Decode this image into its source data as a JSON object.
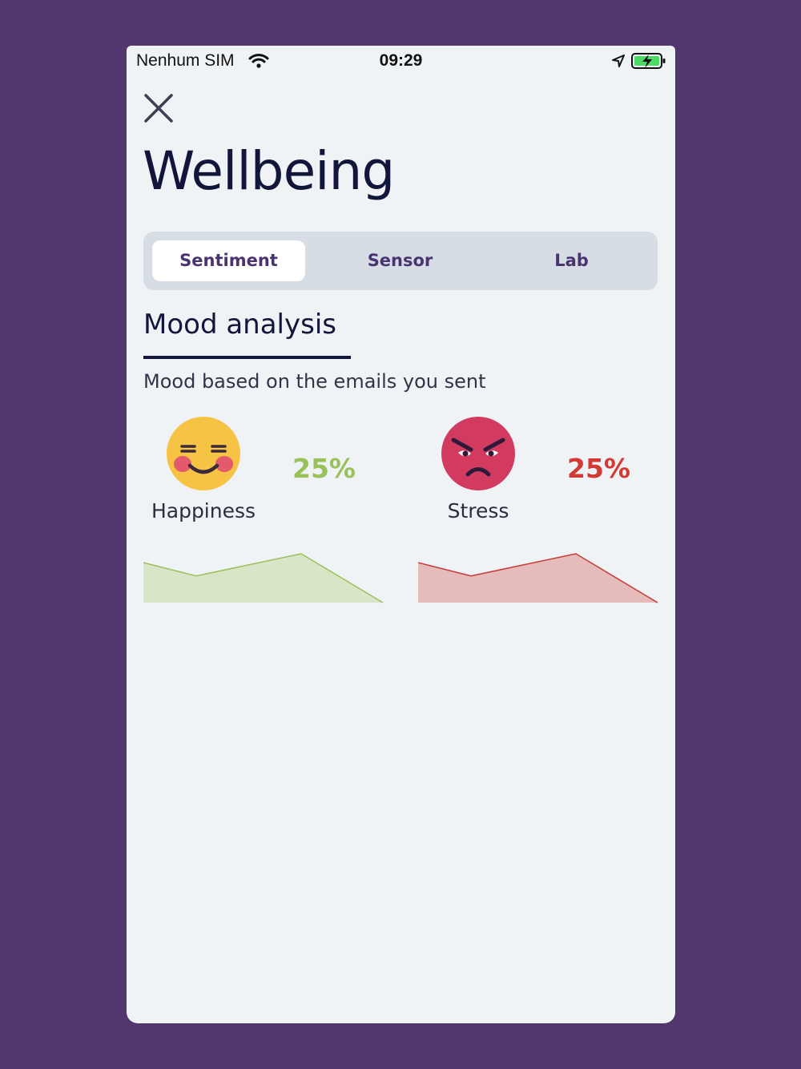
{
  "status_bar": {
    "carrier": "Nenhum SIM",
    "time": "09:29"
  },
  "header": {
    "title": "Wellbeing",
    "close_icon": "close-icon"
  },
  "tabs": [
    {
      "label": "Sentiment",
      "active": true
    },
    {
      "label": "Sensor",
      "active": false
    },
    {
      "label": "Lab",
      "active": false
    }
  ],
  "section": {
    "title": "Mood analysis",
    "subtitle": "Mood based on the emails you sent"
  },
  "metrics": [
    {
      "label": "Happiness",
      "percent": "25%",
      "icon": "smiling-face-icon",
      "color": "#99c15a",
      "fill": "#d8e5c7",
      "trend": [
        4,
        1,
        6,
        -5
      ]
    },
    {
      "label": "Stress",
      "percent": "25%",
      "icon": "angry-face-icon",
      "color": "#c63a34",
      "fill": "#e6bbbb",
      "trend": [
        4,
        1,
        6,
        -5
      ]
    }
  ],
  "colors": {
    "background": "#51376e",
    "screen": "#eff3f6",
    "title": "#11163a",
    "tab_text": "#4a3470"
  }
}
